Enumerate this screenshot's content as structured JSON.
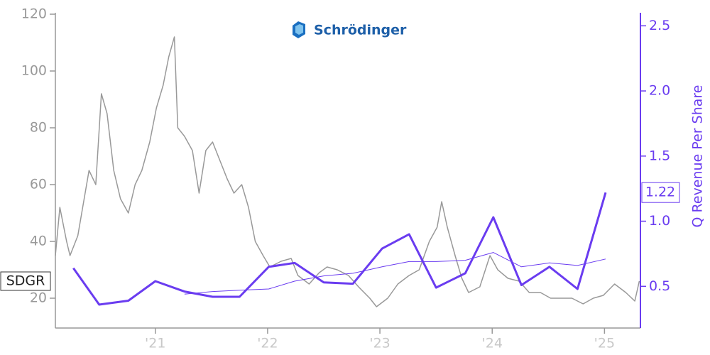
{
  "chart_data": {
    "type": "line",
    "logo_text": "Schrödinger",
    "y2label": "Q Revenue Per Share",
    "xlim": [
      2020.11,
      2025.32
    ],
    "xticks": [
      {
        "value": 2021,
        "label": "'21"
      },
      {
        "value": 2022,
        "label": "'22"
      },
      {
        "value": 2023,
        "label": "'23"
      },
      {
        "value": 2024,
        "label": "'24"
      },
      {
        "value": 2025,
        "label": "'25"
      }
    ],
    "ylim": [
      9.5,
      120.5
    ],
    "yticks": [
      20,
      40,
      60,
      80,
      100,
      120
    ],
    "y2lim": [
      0.18,
      2.6
    ],
    "y2ticks": [
      0.5,
      {
        "value": 1,
        "label": "1.0"
      },
      1.5,
      {
        "value": 2,
        "label": "2.0"
      },
      2.5
    ],
    "series": [
      {
        "name": "SDGR",
        "color": "#999999",
        "width": 1.5,
        "x": [
          2020.11,
          2020.15,
          2020.21,
          2020.24,
          2020.31,
          2020.41,
          2020.47,
          2020.52,
          2020.57,
          2020.63,
          2020.69,
          2020.76,
          2020.82,
          2020.88,
          2020.95,
          2021.01,
          2021.07,
          2021.12,
          2021.17,
          2021.2,
          2021.26,
          2021.33,
          2021.39,
          2021.45,
          2021.51,
          2021.58,
          2021.64,
          2021.7,
          2021.77,
          2021.83,
          2021.89,
          2021.96,
          2022.02,
          2022.12,
          2022.21,
          2022.27,
          2022.37,
          2022.46,
          2022.53,
          2022.62,
          2022.72,
          2022.81,
          2022.91,
          2022.97,
          2023.07,
          2023.16,
          2023.26,
          2023.35,
          2023.44,
          2023.51,
          2023.55,
          2023.6,
          2023.67,
          2023.73,
          2023.79,
          2023.89,
          2023.98,
          2024.05,
          2024.14,
          2024.24,
          2024.33,
          2024.43,
          2024.52,
          2024.62,
          2024.71,
          2024.81,
          2024.9,
          2024.99,
          2025.09,
          2025.19,
          2025.27,
          2025.31
        ],
        "values": [
          35,
          52,
          40,
          35,
          42,
          65,
          60,
          92,
          85,
          65,
          55,
          50,
          60,
          65,
          75,
          87,
          95,
          105,
          112,
          80,
          77,
          72,
          57,
          72,
          75,
          68,
          62,
          57,
          60,
          52,
          40,
          35,
          31,
          33,
          34,
          28,
          25,
          29,
          31,
          30,
          28,
          24,
          20,
          17,
          20,
          25,
          28,
          30,
          40,
          45,
          54,
          45,
          35,
          27,
          22,
          24,
          35,
          30,
          27,
          26,
          22,
          22,
          20,
          20,
          20,
          18,
          20,
          21,
          25,
          22,
          19,
          26
        ]
      },
      {
        "axis": "y2",
        "color": "#6a3cf0",
        "width": 3,
        "x": [
          2020.27,
          2020.5,
          2020.76,
          2021.0,
          2021.26,
          2021.51,
          2021.75,
          2022.01,
          2022.24,
          2022.5,
          2022.76,
          2023.02,
          2023.26,
          2023.5,
          2023.76,
          2024.01,
          2024.26,
          2024.51,
          2024.76,
          2025.01
        ],
        "values": [
          0.64,
          0.36,
          0.39,
          0.54,
          0.46,
          0.42,
          0.42,
          0.65,
          0.68,
          0.53,
          0.52,
          0.79,
          0.9,
          0.49,
          0.6,
          1.03,
          0.51,
          0.65,
          0.48,
          1.22
        ],
        "value_labels": [
          null,
          null,
          null,
          null,
          null,
          null,
          null,
          null,
          null,
          null,
          null,
          null,
          null,
          null,
          null,
          null,
          null,
          null,
          null,
          "1.22"
        ]
      },
      {
        "axis": "y2",
        "color": "#6a3cf0",
        "width": 1,
        "x": [
          2021.26,
          2021.51,
          2021.75,
          2022.01,
          2022.24,
          2022.5,
          2022.76,
          2023.02,
          2023.26,
          2023.5,
          2023.76,
          2024.01,
          2024.26,
          2024.51,
          2024.76,
          2025.01
        ],
        "values": [
          0.44,
          0.46,
          0.47,
          0.48,
          0.54,
          0.58,
          0.6,
          0.65,
          0.69,
          0.69,
          0.7,
          0.76,
          0.65,
          0.68,
          0.66,
          0.71
        ]
      }
    ]
  }
}
